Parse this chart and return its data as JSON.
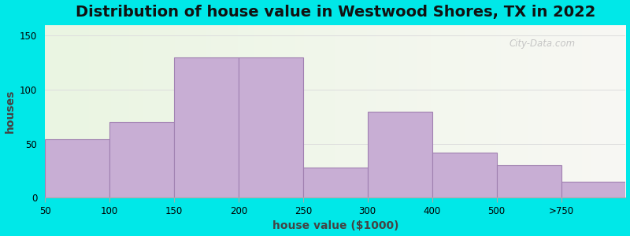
{
  "title": "Distribution of house value in Westwood Shores, TX in 2022",
  "xlabel": "house value ($1000)",
  "ylabel": "houses",
  "tick_labels": [
    "50",
    "100",
    "150",
    "200",
    "250",
    "300",
    "400",
    "500",
    ">750"
  ],
  "values": [
    54,
    70,
    130,
    130,
    28,
    80,
    42,
    30,
    15
  ],
  "bar_color": "#c8aed4",
  "bar_edge_color": "#a080b0",
  "background_outer": "#00e8e8",
  "background_inner_left": "#eaf5e2",
  "background_inner_right": "#f8f8f4",
  "ylim": [
    0,
    160
  ],
  "yticks": [
    0,
    50,
    100,
    150
  ],
  "title_fontsize": 14,
  "axis_label_fontsize": 10,
  "watermark_text": "City-Data.com"
}
